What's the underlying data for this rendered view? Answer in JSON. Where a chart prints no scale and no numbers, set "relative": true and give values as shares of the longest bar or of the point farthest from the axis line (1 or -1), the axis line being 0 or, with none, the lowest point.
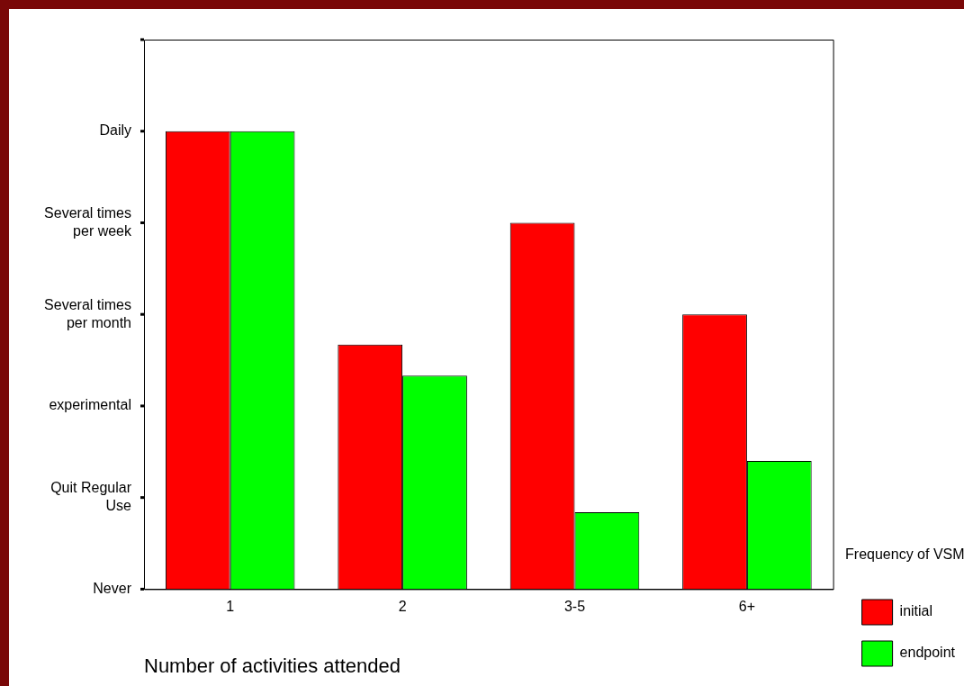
{
  "chart_data": {
    "type": "bar",
    "relative": true,
    "categories": [
      "1",
      "2",
      "3-5",
      "6+"
    ],
    "series": [
      {
        "name": "initial",
        "color": "#ff0000",
        "values": [
          1,
          0.534,
          0.8,
          0.6
        ]
      },
      {
        "name": "endpoint",
        "color": "#00ff00",
        "values": [
          1,
          0.466,
          0.168,
          0.28
        ]
      }
    ],
    "xlabel": "Number of activities attended",
    "legend_title": "Frequency of VSM",
    "legend": "right",
    "annotations": [
      "Never",
      "Quit Regular Use",
      "experimental",
      "Several times per month",
      "Several times per week",
      "Daily"
    ]
  }
}
